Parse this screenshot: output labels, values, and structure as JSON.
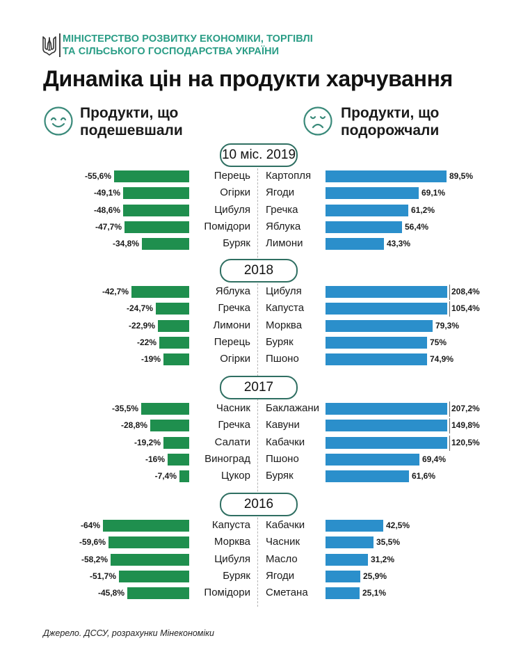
{
  "header": {
    "ministry_line1": "МІНІСТЕРСТВО РОЗВИТКУ ЕКОНОМІКИ, ТОРГІВЛІ",
    "ministry_line2": "ТА СІЛЬСЬКОГО ГОСПОДАРСТВА УКРАЇНИ",
    "logo_icon": "trident-coat-of-arms-icon",
    "title": "Динаміка цін на продукти харчування"
  },
  "columns": {
    "left": {
      "line1": "Продукти, що",
      "line2": "подешевшали",
      "icon": "smiling-face-icon"
    },
    "right": {
      "line1": "Продукти, що",
      "line2": "подорожчали",
      "icon": "sad-face-icon"
    }
  },
  "colors": {
    "decrease": "#1f8f4e",
    "increase": "#2b8fcb",
    "accent": "#2a9d86"
  },
  "chart_data": {
    "type": "bar",
    "title": "Динаміка цін на продукти харчування",
    "xlabel": "",
    "ylabel": "",
    "unit": "%",
    "display_cap_percent": 90,
    "sections": [
      {
        "period": "10 міс. 2019",
        "decreased": [
          {
            "name": "Перець",
            "value": -55.6,
            "label": "-55,6%"
          },
          {
            "name": "Огірки",
            "value": -49.1,
            "label": "-49,1%"
          },
          {
            "name": "Цибуля",
            "value": -48.6,
            "label": "-48,6%"
          },
          {
            "name": "Помідори",
            "value": -47.7,
            "label": "-47,7%"
          },
          {
            "name": "Буряк",
            "value": -34.8,
            "label": "-34,8%"
          }
        ],
        "increased": [
          {
            "name": "Картопля",
            "value": 89.5,
            "label": "89,5%"
          },
          {
            "name": "Ягоди",
            "value": 69.1,
            "label": "69,1%"
          },
          {
            "name": "Гречка",
            "value": 61.2,
            "label": "61,2%"
          },
          {
            "name": "Яблука",
            "value": 56.4,
            "label": "56,4%"
          },
          {
            "name": "Лимони",
            "value": 43.3,
            "label": "43,3%"
          }
        ]
      },
      {
        "period": "2018",
        "decreased": [
          {
            "name": "Яблука",
            "value": -42.7,
            "label": "-42,7%"
          },
          {
            "name": "Гречка",
            "value": -24.7,
            "label": "-24,7%"
          },
          {
            "name": "Лимони",
            "value": -22.9,
            "label": "-22,9%"
          },
          {
            "name": "Перець",
            "value": -22,
            "label": "-22%"
          },
          {
            "name": "Огірки",
            "value": -19,
            "label": "-19%"
          }
        ],
        "increased": [
          {
            "name": "Цибуля",
            "value": 208.4,
            "label": "208,4%"
          },
          {
            "name": "Капуста",
            "value": 105.4,
            "label": "105,4%"
          },
          {
            "name": "Морква",
            "value": 79.3,
            "label": "79,3%"
          },
          {
            "name": "Буряк",
            "value": 75,
            "label": "75%"
          },
          {
            "name": "Пшоно",
            "value": 74.9,
            "label": "74,9%"
          }
        ]
      },
      {
        "period": "2017",
        "decreased": [
          {
            "name": "Часник",
            "value": -35.5,
            "label": "-35,5%"
          },
          {
            "name": "Гречка",
            "value": -28.8,
            "label": "-28,8%"
          },
          {
            "name": "Салати",
            "value": -19.2,
            "label": "-19,2%"
          },
          {
            "name": "Виноград",
            "value": -16,
            "label": "-16%"
          },
          {
            "name": "Цукор",
            "value": -7.4,
            "label": "-7,4%"
          }
        ],
        "increased": [
          {
            "name": "Баклажани",
            "value": 207.2,
            "label": "207,2%"
          },
          {
            "name": "Кавуни",
            "value": 149.8,
            "label": "149,8%"
          },
          {
            "name": "Кабачки",
            "value": 120.5,
            "label": "120,5%"
          },
          {
            "name": "Пшоно",
            "value": 69.4,
            "label": "69,4%"
          },
          {
            "name": "Буряк",
            "value": 61.6,
            "label": "61,6%"
          }
        ]
      },
      {
        "period": "2016",
        "decreased": [
          {
            "name": "Капуста",
            "value": -64,
            "label": "-64%"
          },
          {
            "name": "Морква",
            "value": -59.6,
            "label": "-59,6%"
          },
          {
            "name": "Цибуля",
            "value": -58.2,
            "label": "-58,2%"
          },
          {
            "name": "Буряк",
            "value": -51.7,
            "label": "-51,7%"
          },
          {
            "name": "Помідори",
            "value": -45.8,
            "label": "-45,8%"
          }
        ],
        "increased": [
          {
            "name": "Кабачки",
            "value": 42.5,
            "label": "42,5%"
          },
          {
            "name": "Часник",
            "value": 35.5,
            "label": "35,5%"
          },
          {
            "name": "Масло",
            "value": 31.2,
            "label": "31,2%"
          },
          {
            "name": "Ягоди",
            "value": 25.9,
            "label": "25,9%"
          },
          {
            "name": "Сметана",
            "value": 25.1,
            "label": "25,1%"
          }
        ]
      }
    ]
  },
  "footer": {
    "source": "Джерело. ДССУ, розрахунки Мінекономіки"
  }
}
